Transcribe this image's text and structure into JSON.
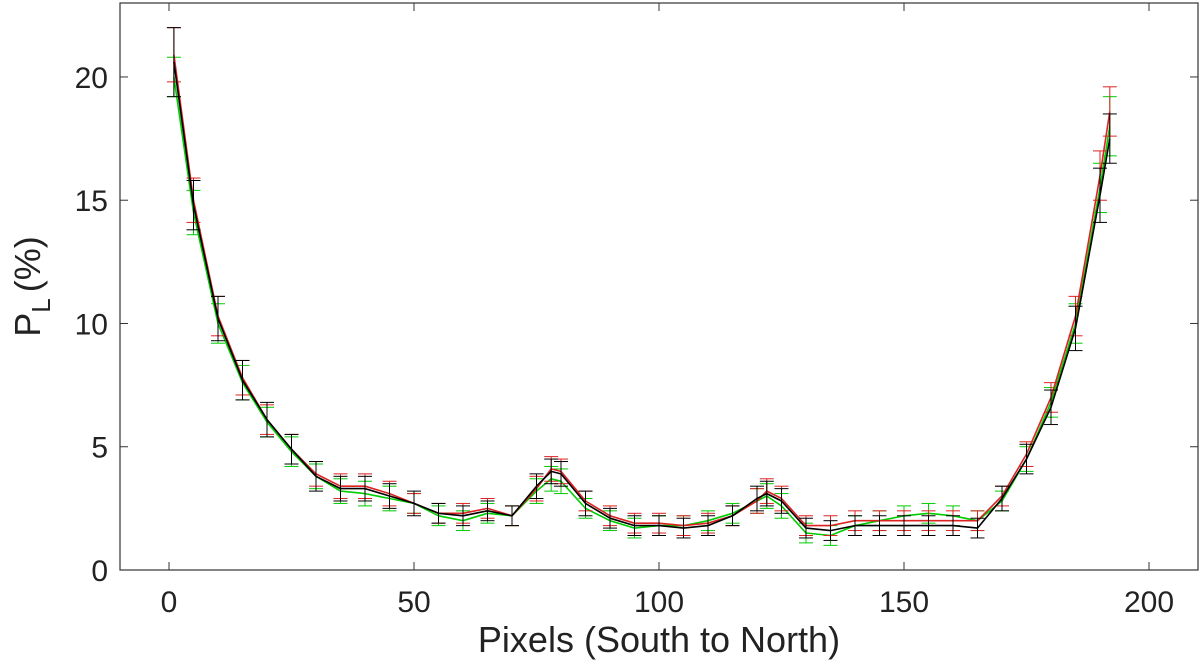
{
  "chart_data": {
    "type": "line",
    "xlabel": "Pixels (South to North)",
    "ylabel": {
      "main": "P",
      "subscript": "L",
      "unit": "(%)"
    },
    "xlim": [
      -10,
      210
    ],
    "ylim": [
      0,
      23
    ],
    "xticks": [
      0,
      50,
      100,
      150,
      200
    ],
    "yticks": [
      0,
      5,
      10,
      15,
      20
    ],
    "xtick_labels": [
      "0",
      "50",
      "100",
      "150",
      "200"
    ],
    "ytick_labels": [
      "0",
      "5",
      "10",
      "15",
      "20"
    ],
    "grid": false,
    "legend": "none",
    "series": [
      {
        "color": "#00cc00",
        "x": [
          1,
          5,
          10,
          15,
          20,
          25,
          30,
          35,
          40,
          45,
          50,
          55,
          60,
          65,
          70,
          75,
          78,
          80,
          85,
          90,
          95,
          100,
          105,
          110,
          115,
          120,
          122,
          125,
          130,
          135,
          140,
          145,
          150,
          155,
          160,
          165,
          170,
          175,
          180,
          185,
          190,
          192
        ],
        "y": [
          20.0,
          14.5,
          10.0,
          7.6,
          6.0,
          4.8,
          3.8,
          3.2,
          3.1,
          2.9,
          2.7,
          2.2,
          2.0,
          2.3,
          2.2,
          3.2,
          3.7,
          3.6,
          2.5,
          2.0,
          1.7,
          1.8,
          1.8,
          2.0,
          2.3,
          2.8,
          3.0,
          2.6,
          1.5,
          1.4,
          1.8,
          2.0,
          2.2,
          2.3,
          2.2,
          2.0,
          2.8,
          4.5,
          6.8,
          10.0,
          15.5,
          18.0
        ],
        "err": [
          0.8,
          0.9,
          0.8,
          0.7,
          0.6,
          0.6,
          0.5,
          0.5,
          0.5,
          0.5,
          0.4,
          0.4,
          0.4,
          0.4,
          0.4,
          0.5,
          0.5,
          0.5,
          0.4,
          0.4,
          0.4,
          0.4,
          0.4,
          0.4,
          0.4,
          0.5,
          0.5,
          0.5,
          0.4,
          0.4,
          0.4,
          0.4,
          0.4,
          0.4,
          0.4,
          0.4,
          0.4,
          0.5,
          0.6,
          0.8,
          1.0,
          1.2
        ]
      },
      {
        "color": "#dd2222",
        "x": [
          1,
          5,
          10,
          15,
          20,
          25,
          30,
          35,
          40,
          45,
          50,
          55,
          60,
          65,
          70,
          75,
          78,
          80,
          85,
          90,
          95,
          100,
          105,
          110,
          115,
          120,
          122,
          125,
          130,
          135,
          140,
          145,
          150,
          155,
          160,
          165,
          170,
          175,
          180,
          185,
          190,
          192
        ],
        "y": [
          20.9,
          15.0,
          10.3,
          7.8,
          6.1,
          4.9,
          3.9,
          3.4,
          3.4,
          3.1,
          2.7,
          2.3,
          2.3,
          2.5,
          2.2,
          3.3,
          4.1,
          4.0,
          2.8,
          2.2,
          1.9,
          1.9,
          1.8,
          1.9,
          2.2,
          2.8,
          3.2,
          2.9,
          1.8,
          1.8,
          2.0,
          2.0,
          2.0,
          2.0,
          2.0,
          2.0,
          3.0,
          4.7,
          7.0,
          10.3,
          16.0,
          18.6
        ],
        "err": [
          1.1,
          0.9,
          0.8,
          0.7,
          0.6,
          0.6,
          0.5,
          0.5,
          0.5,
          0.5,
          0.4,
          0.4,
          0.4,
          0.4,
          0.4,
          0.5,
          0.5,
          0.5,
          0.4,
          0.4,
          0.4,
          0.4,
          0.4,
          0.4,
          0.4,
          0.5,
          0.5,
          0.5,
          0.4,
          0.4,
          0.4,
          0.4,
          0.4,
          0.4,
          0.4,
          0.4,
          0.4,
          0.5,
          0.6,
          0.8,
          1.0,
          1.0
        ]
      },
      {
        "color": "#000000",
        "x": [
          1,
          5,
          10,
          15,
          20,
          25,
          30,
          35,
          40,
          45,
          50,
          55,
          60,
          65,
          70,
          75,
          78,
          80,
          85,
          90,
          95,
          100,
          105,
          110,
          115,
          120,
          122,
          125,
          130,
          135,
          140,
          145,
          150,
          155,
          160,
          165,
          170,
          175,
          180,
          185,
          190,
          192
        ],
        "y": [
          20.6,
          14.8,
          10.2,
          7.7,
          6.1,
          4.9,
          3.8,
          3.3,
          3.3,
          3.0,
          2.7,
          2.3,
          2.2,
          2.4,
          2.2,
          3.4,
          4.0,
          3.9,
          2.7,
          2.1,
          1.8,
          1.8,
          1.7,
          1.8,
          2.2,
          2.9,
          3.1,
          2.8,
          1.7,
          1.6,
          1.8,
          1.8,
          1.8,
          1.8,
          1.8,
          1.7,
          2.9,
          4.5,
          6.6,
          9.8,
          15.2,
          17.5
        ],
        "err": [
          1.4,
          1.0,
          0.9,
          0.8,
          0.7,
          0.6,
          0.6,
          0.5,
          0.5,
          0.5,
          0.5,
          0.4,
          0.4,
          0.4,
          0.4,
          0.5,
          0.5,
          0.5,
          0.5,
          0.4,
          0.4,
          0.4,
          0.4,
          0.4,
          0.4,
          0.5,
          0.5,
          0.5,
          0.4,
          0.4,
          0.4,
          0.4,
          0.4,
          0.4,
          0.4,
          0.4,
          0.5,
          0.6,
          0.7,
          0.9,
          1.1,
          1.0
        ]
      }
    ]
  }
}
